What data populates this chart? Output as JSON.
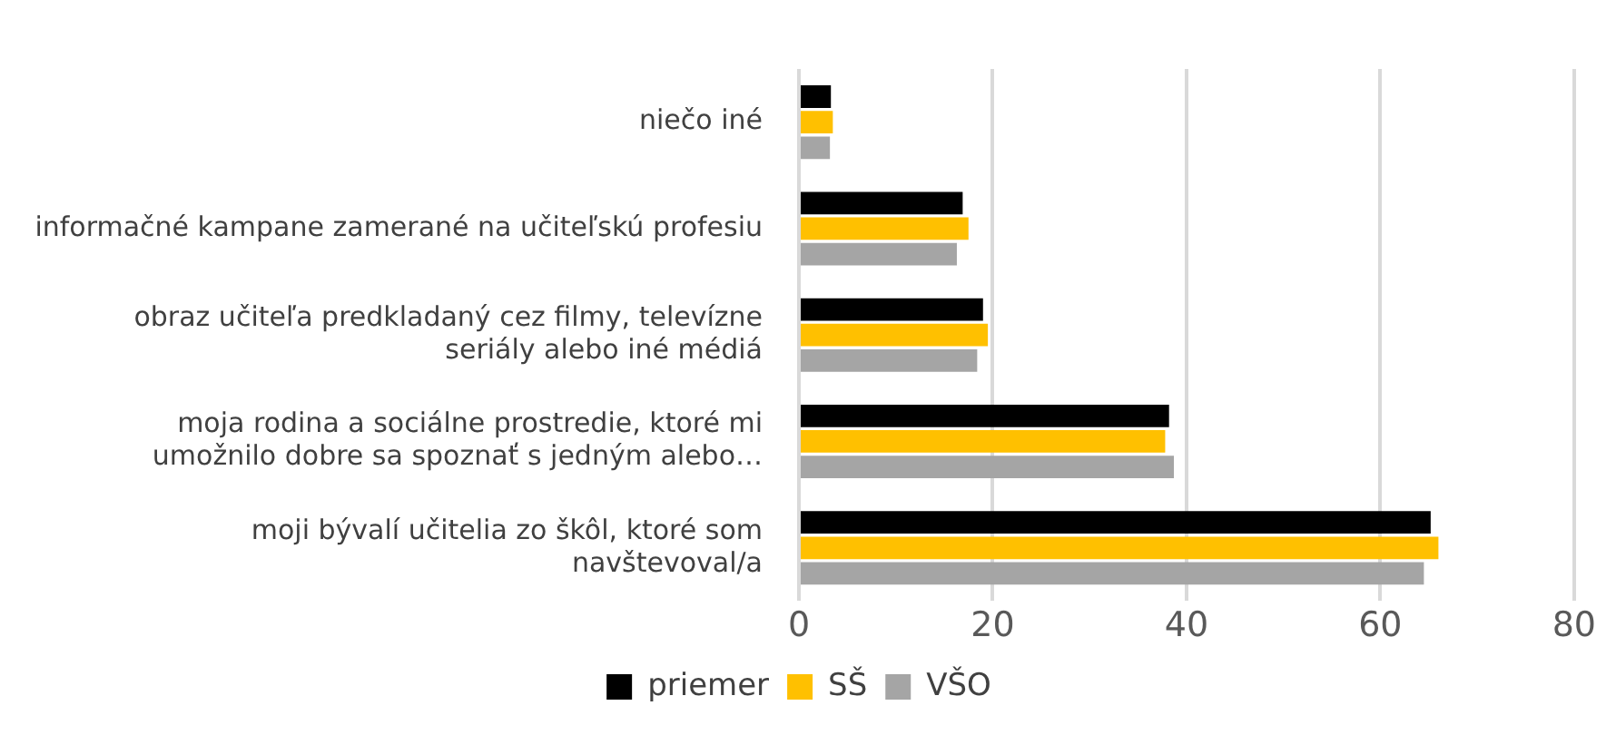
{
  "chart_data": {
    "type": "bar",
    "orientation": "horizontal",
    "categories": [
      "niečo iné",
      "informačné kampane zamerané na učiteľskú profesiu",
      "obraz učiteľa predkladaný cez filmy, televízne seriály alebo iné médiá",
      "moja rodina a sociálne prostredie, ktoré mi umožnilo dobre sa spoznať s jedným alebo…",
      "moji bývalí učitelia zo škôl, ktoré som navštevoval/a"
    ],
    "series": [
      {
        "name": "priemer",
        "color": "#000000",
        "values": [
          3.3,
          16.9,
          19.0,
          38.2,
          65.2
        ]
      },
      {
        "name": "SŠ",
        "color": "#ffc000",
        "values": [
          3.5,
          17.5,
          19.5,
          37.8,
          66.0
        ]
      },
      {
        "name": "VŠO",
        "color": "#a5a5a5",
        "values": [
          3.2,
          16.3,
          18.4,
          38.7,
          64.5
        ]
      }
    ],
    "xlim": [
      0,
      80
    ],
    "xticks": [
      0,
      20,
      40,
      60,
      80
    ],
    "grid": "x",
    "legend": "bottom"
  }
}
